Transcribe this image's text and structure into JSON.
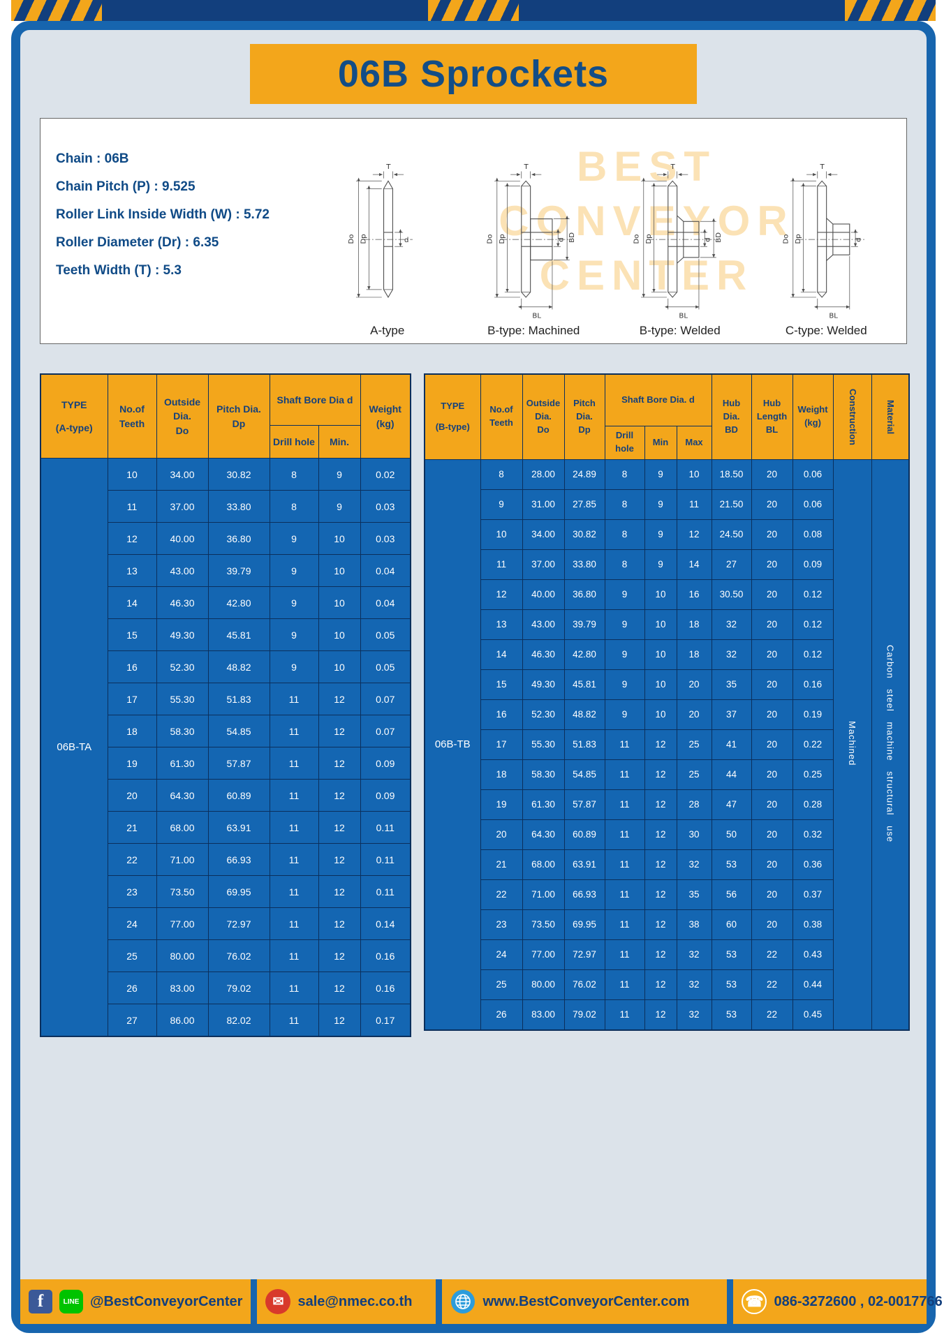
{
  "page": {
    "title": "06B Sprockets"
  },
  "colors": {
    "accent_yellow": "#F3A61B",
    "frame_blue": "#1765AE",
    "navy": "#123F7D",
    "table_blue": "#1466B2",
    "header_text": "#15417C"
  },
  "specs": {
    "lines": [
      "Chain : 06B",
      "Chain Pitch (P) : 9.525",
      "Roller Link Inside Width (W) : 5.72",
      "Roller Diameter (Dr) : 6.35",
      "Teeth Width (T) : 5.3"
    ]
  },
  "drawings": {
    "watermark_lines": [
      "BEST",
      "CONVEYOR",
      "CENTER"
    ],
    "figures": [
      {
        "caption": "A-type",
        "dims": [
          "T",
          "Do",
          "Dp",
          "d"
        ]
      },
      {
        "caption": "B-type: Machined",
        "dims": [
          "T",
          "Do",
          "Dp",
          "d",
          "BD",
          "BL"
        ]
      },
      {
        "caption": "B-type: Welded",
        "dims": [
          "T",
          "Do",
          "Dp",
          "d",
          "BD",
          "BL"
        ]
      },
      {
        "caption": "C-type: Welded",
        "dims": [
          "T",
          "Do",
          "Dp",
          "d",
          "BL"
        ]
      }
    ]
  },
  "table_a": {
    "title_col": "TYPE\n(A-type)",
    "type_value": "06B-TA",
    "headers": {
      "teeth": "No.of\nTeeth",
      "outside": "Outside\nDia.\nDo",
      "pitch": "Pitch Dia.\nDp",
      "bore_group": "Shaft Bore Dia d",
      "drill": "Drill hole",
      "min": "Min.",
      "weight": "Weight\n(kg)"
    },
    "rows": [
      [
        "10",
        "34.00",
        "30.82",
        "8",
        "9",
        "0.02"
      ],
      [
        "11",
        "37.00",
        "33.80",
        "8",
        "9",
        "0.03"
      ],
      [
        "12",
        "40.00",
        "36.80",
        "9",
        "10",
        "0.03"
      ],
      [
        "13",
        "43.00",
        "39.79",
        "9",
        "10",
        "0.04"
      ],
      [
        "14",
        "46.30",
        "42.80",
        "9",
        "10",
        "0.04"
      ],
      [
        "15",
        "49.30",
        "45.81",
        "9",
        "10",
        "0.05"
      ],
      [
        "16",
        "52.30",
        "48.82",
        "9",
        "10",
        "0.05"
      ],
      [
        "17",
        "55.30",
        "51.83",
        "11",
        "12",
        "0.07"
      ],
      [
        "18",
        "58.30",
        "54.85",
        "11",
        "12",
        "0.07"
      ],
      [
        "19",
        "61.30",
        "57.87",
        "11",
        "12",
        "0.09"
      ],
      [
        "20",
        "64.30",
        "60.89",
        "11",
        "12",
        "0.09"
      ],
      [
        "21",
        "68.00",
        "63.91",
        "11",
        "12",
        "0.11"
      ],
      [
        "22",
        "71.00",
        "66.93",
        "11",
        "12",
        "0.11"
      ],
      [
        "23",
        "73.50",
        "69.95",
        "11",
        "12",
        "0.11"
      ],
      [
        "24",
        "77.00",
        "72.97",
        "11",
        "12",
        "0.14"
      ],
      [
        "25",
        "80.00",
        "76.02",
        "11",
        "12",
        "0.16"
      ],
      [
        "26",
        "83.00",
        "79.02",
        "11",
        "12",
        "0.16"
      ],
      [
        "27",
        "86.00",
        "82.02",
        "11",
        "12",
        "0.17"
      ]
    ]
  },
  "table_b": {
    "title_col": "TYPE\n(B-type)",
    "type_value": "06B-TB",
    "construction": "Machined",
    "material": "Carbon steel machine structural use",
    "headers": {
      "teeth": "No.of\nTeeth",
      "outside": "Outside\nDia.\nDo",
      "pitch": "Pitch\nDia.\nDp",
      "bore_group": "Shaft Bore Dia.  d",
      "drill": "Drill hole",
      "min": "Min",
      "max": "Max",
      "hub_dia": "Hub\nDia.\nBD",
      "hub_len": "Hub\nLength\nBL",
      "weight": "Weight\n(kg)",
      "construction": "Construction",
      "material": "Material"
    },
    "rows": [
      [
        "8",
        "28.00",
        "24.89",
        "8",
        "9",
        "10",
        "18.50",
        "20",
        "0.06"
      ],
      [
        "9",
        "31.00",
        "27.85",
        "8",
        "9",
        "11",
        "21.50",
        "20",
        "0.06"
      ],
      [
        "10",
        "34.00",
        "30.82",
        "8",
        "9",
        "12",
        "24.50",
        "20",
        "0.08"
      ],
      [
        "11",
        "37.00",
        "33.80",
        "8",
        "9",
        "14",
        "27",
        "20",
        "0.09"
      ],
      [
        "12",
        "40.00",
        "36.80",
        "9",
        "10",
        "16",
        "30.50",
        "20",
        "0.12"
      ],
      [
        "13",
        "43.00",
        "39.79",
        "9",
        "10",
        "18",
        "32",
        "20",
        "0.12"
      ],
      [
        "14",
        "46.30",
        "42.80",
        "9",
        "10",
        "18",
        "32",
        "20",
        "0.12"
      ],
      [
        "15",
        "49.30",
        "45.81",
        "9",
        "10",
        "20",
        "35",
        "20",
        "0.16"
      ],
      [
        "16",
        "52.30",
        "48.82",
        "9",
        "10",
        "20",
        "37",
        "20",
        "0.19"
      ],
      [
        "17",
        "55.30",
        "51.83",
        "11",
        "12",
        "25",
        "41",
        "20",
        "0.22"
      ],
      [
        "18",
        "58.30",
        "54.85",
        "11",
        "12",
        "25",
        "44",
        "20",
        "0.25"
      ],
      [
        "19",
        "61.30",
        "57.87",
        "11",
        "12",
        "28",
        "47",
        "20",
        "0.28"
      ],
      [
        "20",
        "64.30",
        "60.89",
        "11",
        "12",
        "30",
        "50",
        "20",
        "0.32"
      ],
      [
        "21",
        "68.00",
        "63.91",
        "11",
        "12",
        "32",
        "53",
        "20",
        "0.36"
      ],
      [
        "22",
        "71.00",
        "66.93",
        "11",
        "12",
        "35",
        "56",
        "20",
        "0.37"
      ],
      [
        "23",
        "73.50",
        "69.95",
        "11",
        "12",
        "38",
        "60",
        "20",
        "0.38"
      ],
      [
        "24",
        "77.00",
        "72.97",
        "11",
        "12",
        "32",
        "53",
        "22",
        "0.43"
      ],
      [
        "25",
        "80.00",
        "76.02",
        "11",
        "12",
        "32",
        "53",
        "22",
        "0.44"
      ],
      [
        "26",
        "83.00",
        "79.02",
        "11",
        "12",
        "32",
        "53",
        "22",
        "0.45"
      ]
    ]
  },
  "footer": {
    "facebook_label": "f",
    "line_label": "LINE",
    "sections": [
      {
        "icons": [
          "facebook-icon",
          "line-icon"
        ],
        "text": "@BestConveyorCenter"
      },
      {
        "icons": [
          "email-icon"
        ],
        "text": "sale@nmec.co.th"
      },
      {
        "icons": [
          "globe-icon"
        ],
        "text": "www.BestConveyorCenter.com"
      },
      {
        "icons": [
          "phone-icon"
        ],
        "text": "086-3272600 , 02-0017766"
      }
    ]
  }
}
